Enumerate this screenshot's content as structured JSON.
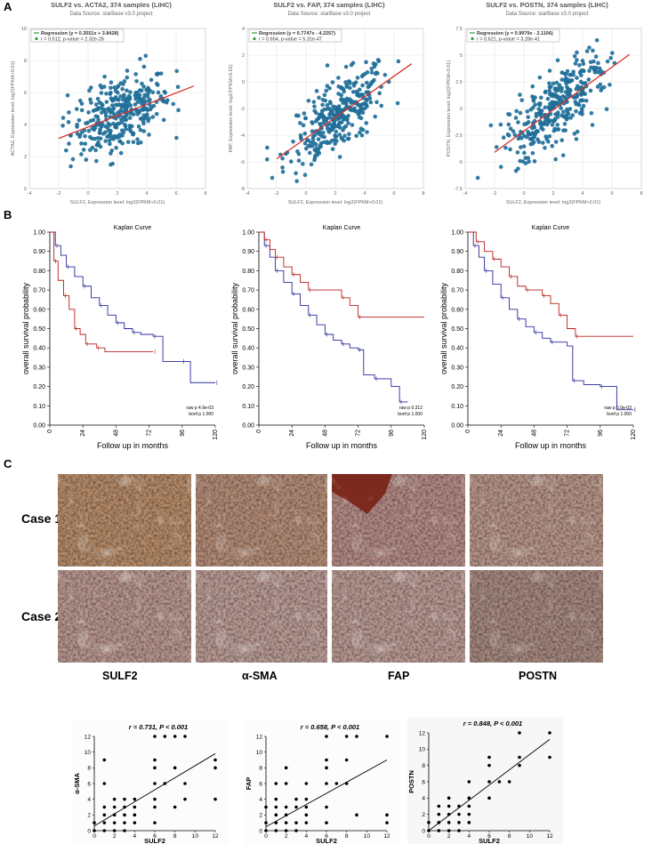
{
  "panel_labels": {
    "a": "A",
    "b": "B",
    "c": "C"
  },
  "scatter_panels": [
    {
      "title": "SULF2 vs. ACTA2, 374 samples (LIHC)",
      "subtitle": "Data Source: starBase v3.0 project",
      "legend_reg": "Regression (y = 0.3551x + 3.8428)",
      "legend_r": "r = 0.512, p-value = 2.32e-26",
      "xlabel": "SULF2, Expression level: log2(FPKM+0.01)",
      "ylabel": "ACTA2, Expression level: log2(FPKM+0.01)",
      "xticks": [
        "-4",
        "-2",
        "0",
        "2",
        "4",
        "6",
        "8"
      ],
      "yticks": [
        "10",
        "8",
        "6",
        "4",
        "2",
        "0"
      ],
      "xlim": [
        -4,
        8
      ],
      "ylim": [
        0,
        10
      ],
      "slope": 0.3551,
      "intercept": 3.8428
    },
    {
      "title": "SULF2 vs. FAP, 374 samples (LIHC)",
      "subtitle": "Data Source: starBase v3.0 project",
      "legend_reg": "Regression (y = 0.7747x - 4.2257)",
      "legend_r": "r = 0.654, p-value = 5.31e-47",
      "xlabel": "SULF2, Expression level: log2(FPKM+0.01)",
      "ylabel": "FAP, Expression level: log2(FPKM+0.01)",
      "xticks": [
        "-4",
        "-2",
        "0",
        "2",
        "4",
        "6",
        "8"
      ],
      "yticks": [
        "4",
        "2",
        "0",
        "-2",
        "-4",
        "-6",
        "-8"
      ],
      "xlim": [
        -4,
        8
      ],
      "ylim": [
        -8,
        4
      ],
      "slope": 0.7747,
      "intercept": -4.2257
    },
    {
      "title": "SULF2 vs. POSTN, 374 samples (LIHC)",
      "subtitle": "Data Source: starBase v3.0 project",
      "legend_reg": "Regression (y = 0.9979x - 2.1106)",
      "legend_r": "r = 0.621, p-value = 3.28e-41",
      "xlabel": "SULF2, Expression level: log2(FPKM+0.01)",
      "ylabel": "POSTN, Expression level: log2(FPKM+0.01)",
      "xticks": [
        "-4",
        "-2",
        "0",
        "2",
        "4",
        "6",
        "8"
      ],
      "yticks": [
        "7.5",
        "5",
        "2.5",
        "0",
        "-2.5",
        "-5",
        "-7.5"
      ],
      "xlim": [
        -4,
        8
      ],
      "ylim": [
        -7.5,
        7.5
      ],
      "slope": 0.9979,
      "intercept": -2.1106
    }
  ],
  "km_panels": [
    {
      "title": "Kaplan Curve",
      "ylabel": "overall survival probability",
      "xlabel": "Follow up in months",
      "yticks": [
        "1.00",
        "0.90",
        "0.80",
        "0.70",
        "0.60",
        "0.50",
        "0.40",
        "0.30",
        "0.20",
        "0.10",
        "0.00"
      ],
      "xticks": [
        "0",
        "24",
        "48",
        "72",
        "96",
        "120"
      ],
      "note1": "raw p 4.9e-03",
      "note2": "bonf p 1.000",
      "blue": [
        [
          0,
          1.0
        ],
        [
          4,
          0.93
        ],
        [
          8,
          0.88
        ],
        [
          12,
          0.82
        ],
        [
          18,
          0.77
        ],
        [
          24,
          0.72
        ],
        [
          30,
          0.66
        ],
        [
          36,
          0.62
        ],
        [
          42,
          0.57
        ],
        [
          48,
          0.53
        ],
        [
          54,
          0.5
        ],
        [
          60,
          0.48
        ],
        [
          66,
          0.47
        ],
        [
          75,
          0.46
        ],
        [
          82,
          0.33
        ],
        [
          96,
          0.33
        ],
        [
          102,
          0.22
        ],
        [
          120,
          0.22
        ]
      ],
      "red": [
        [
          0,
          1.0
        ],
        [
          3,
          0.85
        ],
        [
          6,
          0.75
        ],
        [
          10,
          0.67
        ],
        [
          14,
          0.6
        ],
        [
          18,
          0.5
        ],
        [
          22,
          0.47
        ],
        [
          26,
          0.42
        ],
        [
          30,
          0.42
        ],
        [
          34,
          0.4
        ],
        [
          40,
          0.38
        ],
        [
          75,
          0.38
        ]
      ]
    },
    {
      "title": "Kaplan Curve",
      "ylabel": "overall survival probability",
      "xlabel": "Follow up in months",
      "yticks": [
        "1.00",
        "0.90",
        "0.80",
        "0.70",
        "0.60",
        "0.50",
        "0.40",
        "0.30",
        "0.20",
        "0.10",
        "0.00"
      ],
      "xticks": [
        "0",
        "24",
        "48",
        "72",
        "96",
        "120"
      ],
      "note1": "raw p 0.312",
      "note2": "bonf p 1.000",
      "blue": [
        [
          0,
          1.0
        ],
        [
          4,
          0.93
        ],
        [
          8,
          0.87
        ],
        [
          12,
          0.8
        ],
        [
          18,
          0.74
        ],
        [
          24,
          0.68
        ],
        [
          30,
          0.62
        ],
        [
          36,
          0.57
        ],
        [
          42,
          0.52
        ],
        [
          48,
          0.47
        ],
        [
          54,
          0.44
        ],
        [
          60,
          0.42
        ],
        [
          66,
          0.4
        ],
        [
          72,
          0.39
        ],
        [
          76,
          0.26
        ],
        [
          84,
          0.24
        ],
        [
          96,
          0.2
        ],
        [
          102,
          0.12
        ],
        [
          108,
          0.12
        ]
      ],
      "red": [
        [
          0,
          1.0
        ],
        [
          4,
          0.96
        ],
        [
          8,
          0.91
        ],
        [
          12,
          0.87
        ],
        [
          18,
          0.82
        ],
        [
          24,
          0.78
        ],
        [
          30,
          0.74
        ],
        [
          36,
          0.7
        ],
        [
          48,
          0.7
        ],
        [
          60,
          0.66
        ],
        [
          66,
          0.62
        ],
        [
          72,
          0.56
        ],
        [
          120,
          0.56
        ]
      ]
    },
    {
      "title": "Kaplan Curve",
      "ylabel": "overall survival probability",
      "xlabel": "Follow up in months",
      "yticks": [
        "1.00",
        "0.90",
        "0.80",
        "0.70",
        "0.60",
        "0.50",
        "0.40",
        "0.30",
        "0.20",
        "0.10",
        "0.00"
      ],
      "xticks": [
        "0",
        "24",
        "48",
        "72",
        "96",
        "120"
      ],
      "note1": "raw p 6.0e-03",
      "note2": "bonf p 1.000",
      "blue": [
        [
          0,
          1.0
        ],
        [
          4,
          0.93
        ],
        [
          8,
          0.87
        ],
        [
          12,
          0.8
        ],
        [
          18,
          0.73
        ],
        [
          24,
          0.66
        ],
        [
          30,
          0.6
        ],
        [
          36,
          0.55
        ],
        [
          42,
          0.51
        ],
        [
          48,
          0.48
        ],
        [
          54,
          0.45
        ],
        [
          60,
          0.43
        ],
        [
          72,
          0.41
        ],
        [
          76,
          0.23
        ],
        [
          84,
          0.21
        ],
        [
          96,
          0.2
        ],
        [
          108,
          0.08
        ],
        [
          120,
          0.08
        ]
      ],
      "red": [
        [
          0,
          1.0
        ],
        [
          6,
          0.95
        ],
        [
          12,
          0.9
        ],
        [
          18,
          0.86
        ],
        [
          24,
          0.82
        ],
        [
          30,
          0.77
        ],
        [
          36,
          0.72
        ],
        [
          42,
          0.7
        ],
        [
          48,
          0.7
        ],
        [
          54,
          0.67
        ],
        [
          60,
          0.63
        ],
        [
          66,
          0.57
        ],
        [
          72,
          0.5
        ],
        [
          78,
          0.46
        ],
        [
          120,
          0.46
        ]
      ]
    }
  ],
  "ihc": {
    "case_labels": [
      "Case 1",
      "Case 2"
    ],
    "stain_labels": [
      "SULF2",
      "α-SMA",
      "FAP",
      "POSTN"
    ]
  },
  "correlation_panels": [
    {
      "title": "r = 0.731, P < 0.001",
      "xlabel": "SULF2",
      "ylabel": "α-SMA",
      "xticks": [
        "0",
        "2",
        "4",
        "6",
        "8",
        "10",
        "12"
      ],
      "yticks": [
        "12",
        "10",
        "8",
        "6",
        "4",
        "2",
        "0"
      ],
      "line": [
        [
          0,
          0.6
        ],
        [
          12,
          9.8
        ]
      ],
      "points": [
        [
          0,
          0
        ],
        [
          0,
          1
        ],
        [
          1,
          0
        ],
        [
          1,
          1
        ],
        [
          1,
          2
        ],
        [
          1,
          3
        ],
        [
          1,
          6
        ],
        [
          1,
          9
        ],
        [
          2,
          0
        ],
        [
          2,
          1
        ],
        [
          2,
          2
        ],
        [
          2,
          3
        ],
        [
          2,
          4
        ],
        [
          3,
          0
        ],
        [
          3,
          1
        ],
        [
          3,
          2
        ],
        [
          3,
          3
        ],
        [
          3,
          4
        ],
        [
          4,
          1
        ],
        [
          4,
          2
        ],
        [
          4,
          3
        ],
        [
          4,
          4
        ],
        [
          6,
          1
        ],
        [
          6,
          3
        ],
        [
          6,
          4
        ],
        [
          6,
          6
        ],
        [
          6,
          8
        ],
        [
          6,
          9
        ],
        [
          6,
          12
        ],
        [
          7,
          6
        ],
        [
          7,
          12
        ],
        [
          8,
          3
        ],
        [
          8,
          8
        ],
        [
          8,
          12
        ],
        [
          9,
          4
        ],
        [
          9,
          6
        ],
        [
          9,
          12
        ],
        [
          12,
          4
        ],
        [
          12,
          8
        ],
        [
          12,
          9
        ]
      ]
    },
    {
      "title": "r = 0.658, P < 0.001",
      "xlabel": "SULF2",
      "ylabel": "FAP",
      "xticks": [
        "0",
        "2",
        "4",
        "6",
        "8",
        "10",
        "12"
      ],
      "yticks": [
        "12",
        "10",
        "8",
        "6",
        "4",
        "2",
        "0"
      ],
      "line": [
        [
          0,
          0.5
        ],
        [
          12,
          9.0
        ]
      ],
      "points": [
        [
          0,
          0
        ],
        [
          0,
          1
        ],
        [
          0,
          3
        ],
        [
          1,
          0
        ],
        [
          1,
          1
        ],
        [
          1,
          2
        ],
        [
          1,
          3
        ],
        [
          1,
          4
        ],
        [
          1,
          6
        ],
        [
          2,
          0
        ],
        [
          2,
          1
        ],
        [
          2,
          2
        ],
        [
          2,
          3
        ],
        [
          2,
          6
        ],
        [
          2,
          8
        ],
        [
          3,
          0
        ],
        [
          3,
          1
        ],
        [
          3,
          3
        ],
        [
          3,
          4
        ],
        [
          4,
          1
        ],
        [
          4,
          2
        ],
        [
          4,
          3
        ],
        [
          4,
          4
        ],
        [
          4,
          6
        ],
        [
          6,
          1
        ],
        [
          6,
          3
        ],
        [
          6,
          6
        ],
        [
          6,
          8
        ],
        [
          6,
          9
        ],
        [
          6,
          12
        ],
        [
          7,
          6
        ],
        [
          8,
          6
        ],
        [
          8,
          9
        ],
        [
          8,
          12
        ],
        [
          9,
          2
        ],
        [
          9,
          12
        ],
        [
          12,
          1
        ],
        [
          12,
          2
        ],
        [
          12,
          12
        ]
      ]
    },
    {
      "title": "r = 0.848, P < 0.001",
      "xlabel": "SULF2",
      "ylabel": "POSTN",
      "xticks": [
        "0",
        "2",
        "4",
        "6",
        "8",
        "10",
        "12"
      ],
      "yticks": [
        "12",
        "10",
        "8",
        "6",
        "4",
        "2",
        "0"
      ],
      "line": [
        [
          0,
          0.0
        ],
        [
          12,
          11.2
        ]
      ],
      "points": [
        [
          0,
          0
        ],
        [
          0,
          1
        ],
        [
          1,
          0
        ],
        [
          1,
          1
        ],
        [
          1,
          2
        ],
        [
          1,
          3
        ],
        [
          2,
          0
        ],
        [
          2,
          1
        ],
        [
          2,
          2
        ],
        [
          2,
          3
        ],
        [
          2,
          4
        ],
        [
          3,
          0
        ],
        [
          3,
          1
        ],
        [
          3,
          2
        ],
        [
          3,
          3
        ],
        [
          4,
          1
        ],
        [
          4,
          2
        ],
        [
          4,
          3
        ],
        [
          4,
          4
        ],
        [
          4,
          6
        ],
        [
          6,
          4
        ],
        [
          6,
          6
        ],
        [
          6,
          8
        ],
        [
          6,
          9
        ],
        [
          7,
          6
        ],
        [
          8,
          6
        ],
        [
          9,
          8
        ],
        [
          9,
          9
        ],
        [
          9,
          12
        ],
        [
          12,
          9
        ],
        [
          12,
          12
        ]
      ]
    }
  ],
  "colors": {
    "dot": "#1f6f99",
    "reg": "#d9302c",
    "km_blue": "#2a2a9c",
    "km_red": "#b8201c",
    "legend_green": "#2c9d3a"
  }
}
